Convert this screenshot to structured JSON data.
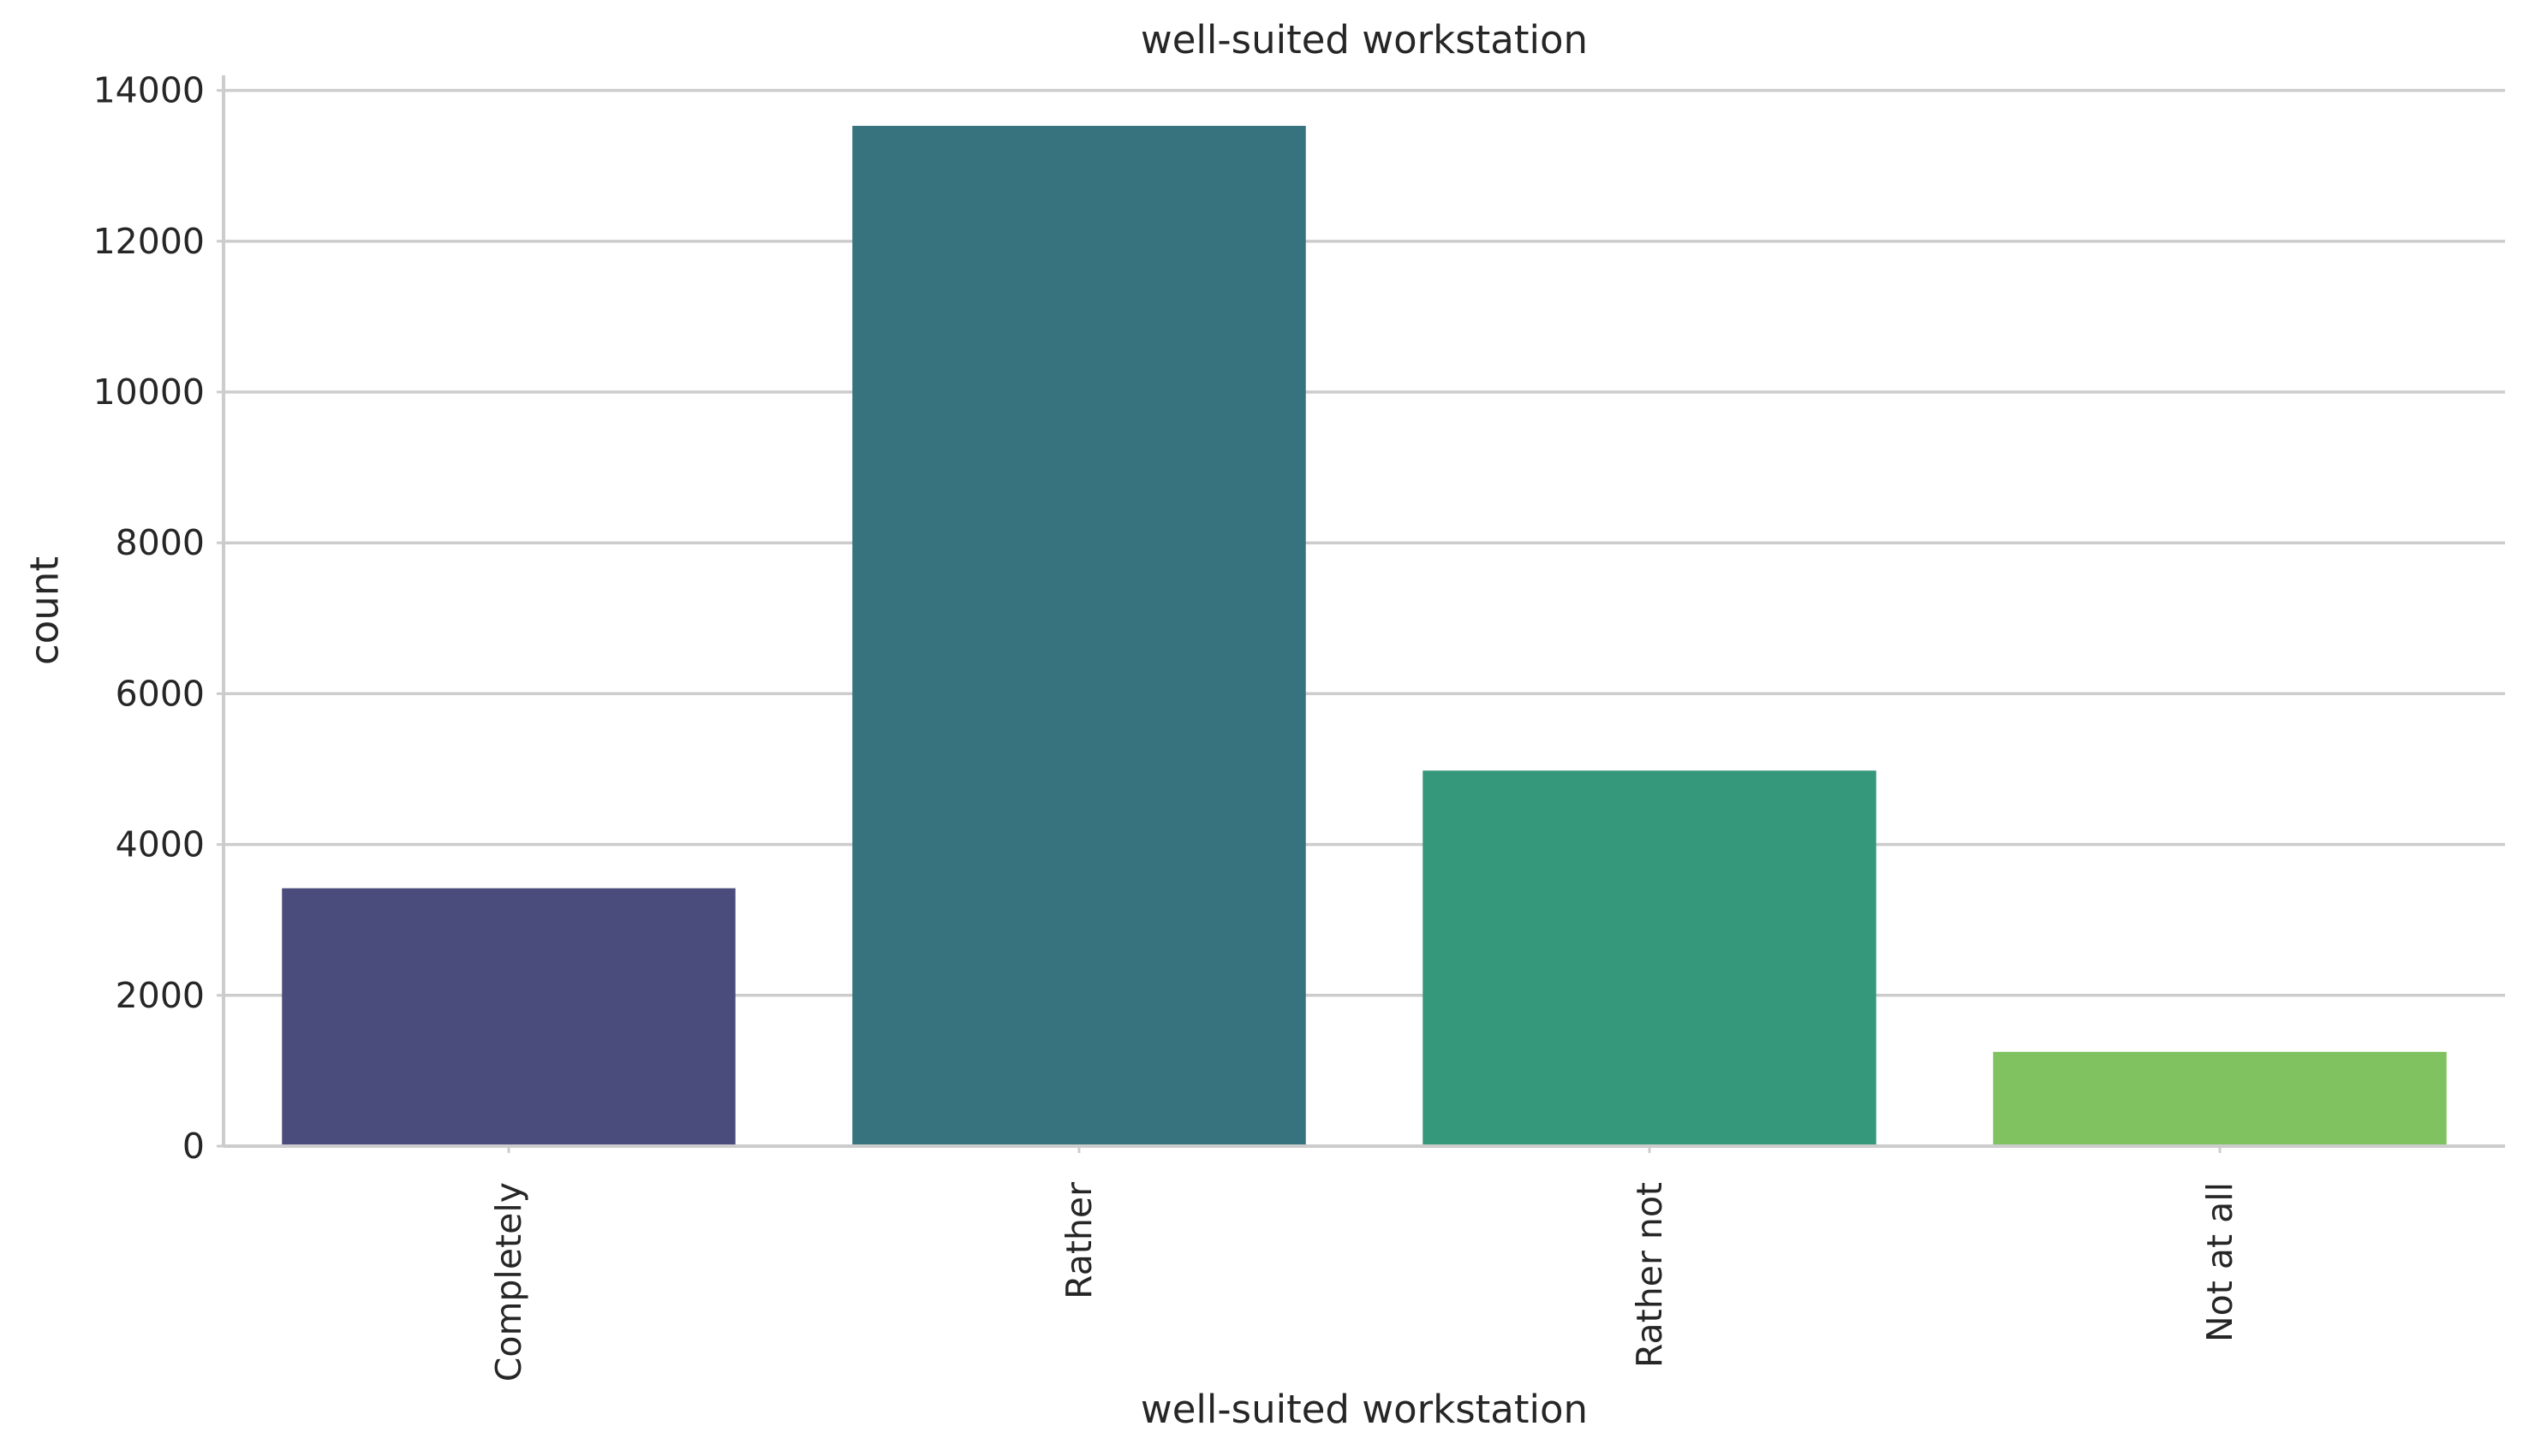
{
  "chart_data": {
    "type": "bar",
    "title": "well-suited workstation",
    "xlabel": "well-suited workstation",
    "ylabel": "count",
    "categories": [
      "Completely",
      "Rather",
      "Rather not",
      "Not at all"
    ],
    "values": [
      3420,
      13530,
      4980,
      1250
    ],
    "colors": [
      "#4a4c7c",
      "#37727f",
      "#35987a",
      "#7fc25f"
    ],
    "ylim": [
      0,
      14200
    ],
    "yticks": [
      0,
      2000,
      4000,
      6000,
      8000,
      10000,
      12000,
      14000
    ],
    "ytick_labels": [
      "0",
      "2000",
      "4000",
      "6000",
      "8000",
      "10000",
      "12000",
      "14000"
    ],
    "grid": "horizontal",
    "legend": "none"
  }
}
